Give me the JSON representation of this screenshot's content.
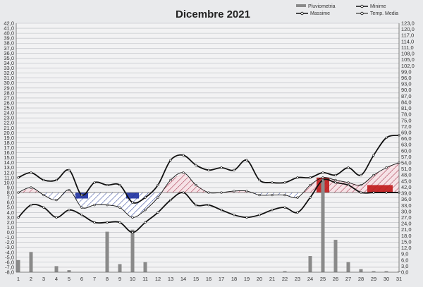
{
  "chart_data": {
    "type": "line",
    "title": "Dicembre 2021",
    "x": [
      1,
      2,
      3,
      4,
      5,
      6,
      7,
      8,
      9,
      10,
      11,
      12,
      13,
      14,
      15,
      16,
      17,
      18,
      19,
      20,
      21,
      22,
      23,
      24,
      25,
      26,
      27,
      28,
      29,
      30,
      31
    ],
    "x_tick_labels": [
      "1",
      "2",
      "3",
      "4",
      "5",
      "6",
      "7",
      "8",
      "9",
      "10",
      "11",
      "12",
      "13",
      "14",
      "15",
      "16",
      "17",
      "18",
      "19",
      "20",
      "21",
      "22",
      "23",
      "24",
      "25",
      "26",
      "27",
      "28",
      "29",
      "30",
      "31"
    ],
    "y_left_ticks": [
      "42,0",
      "41,0",
      "40,0",
      "39,0",
      "38,0",
      "37,0",
      "36,0",
      "35,0",
      "34,0",
      "33,0",
      "32,0",
      "31,0",
      "30,0",
      "29,0",
      "28,0",
      "27,0",
      "26,0",
      "25,0",
      "24,0",
      "23,0",
      "22,0",
      "21,0",
      "20,0",
      "19,0",
      "18,0",
      "17,0",
      "16,0",
      "15,0",
      "14,0",
      "13,0",
      "12,0",
      "11,0",
      "10,0",
      "9,0",
      "8,0",
      "7,0",
      "6,0",
      "5,0",
      "4,0",
      "3,0",
      "2,0",
      "1,0",
      "0,0",
      "-1,0",
      "-2,0",
      "-3,0",
      "-4,0",
      "-5,0",
      "-6,0",
      "-7,0",
      "-8,0"
    ],
    "y_right_ticks": [
      "123,0",
      "120,0",
      "117,0",
      "114,0",
      "111,0",
      "108,0",
      "105,0",
      "102,0",
      "99,0",
      "96,0",
      "93,0",
      "90,0",
      "87,0",
      "84,0",
      "81,0",
      "78,0",
      "75,0",
      "72,0",
      "69,0",
      "66,0",
      "63,0",
      "60,0",
      "57,0",
      "54,0",
      "51,0",
      "48,0",
      "45,0",
      "42,0",
      "39,0",
      "36,0",
      "33,0",
      "30,0",
      "27,0",
      "24,0",
      "21,0",
      "18,0",
      "15,0",
      "12,0",
      "9,0",
      "6,0",
      "3,0",
      "0,0"
    ],
    "ylim_left": [
      -8,
      42
    ],
    "ylim_right": [
      0,
      123
    ],
    "reference_temperature": 8.0,
    "grid": true,
    "legend": "top-right",
    "series": [
      {
        "name": "Massime",
        "axis": "left",
        "color": "#111111",
        "values": [
          11.0,
          12.0,
          10.5,
          10.5,
          12.5,
          7.5,
          10.0,
          9.5,
          9.5,
          6.0,
          7.0,
          9.5,
          14.5,
          15.5,
          13.5,
          12.5,
          13.0,
          12.5,
          14.5,
          10.5,
          10.0,
          10.0,
          11.0,
          11.0,
          12.0,
          11.5,
          13.0,
          11.5,
          15.5,
          19.0,
          19.5
        ]
      },
      {
        "name": "Minime",
        "axis": "left",
        "color": "#111111",
        "values": [
          3.0,
          5.5,
          5.0,
          3.0,
          4.5,
          3.5,
          2.0,
          2.0,
          2.0,
          0.0,
          2.0,
          4.0,
          6.5,
          8.0,
          5.5,
          5.5,
          4.5,
          3.5,
          3.0,
          3.5,
          4.5,
          5.0,
          4.0,
          7.0,
          10.5,
          10.0,
          9.5,
          8.0,
          8.0,
          8.0,
          8.0
        ]
      },
      {
        "name": "Temp. Media",
        "axis": "left",
        "color": "#111111",
        "values": [
          8.0,
          9.0,
          7.5,
          6.5,
          8.5,
          5.0,
          5.5,
          5.5,
          5.0,
          3.0,
          4.5,
          7.0,
          10.5,
          12.0,
          9.5,
          8.0,
          8.0,
          8.3,
          8.3,
          7.5,
          7.5,
          7.5,
          7.0,
          9.5,
          11.0,
          10.5,
          10.0,
          9.5,
          11.5,
          13.0,
          14.0
        ]
      },
      {
        "name": "Pluviometria",
        "axis": "right",
        "type": "bar",
        "color": "#8a8a8a",
        "values": [
          6.0,
          10.0,
          0,
          3.0,
          1.0,
          0,
          0,
          20.0,
          4.0,
          21.0,
          5.0,
          0,
          0,
          0,
          0,
          0,
          0,
          0,
          0,
          0,
          0,
          0.5,
          0,
          8.0,
          46.0,
          16.0,
          5.0,
          1.5,
          0.5,
          0.5,
          0.3
        ]
      }
    ]
  }
}
